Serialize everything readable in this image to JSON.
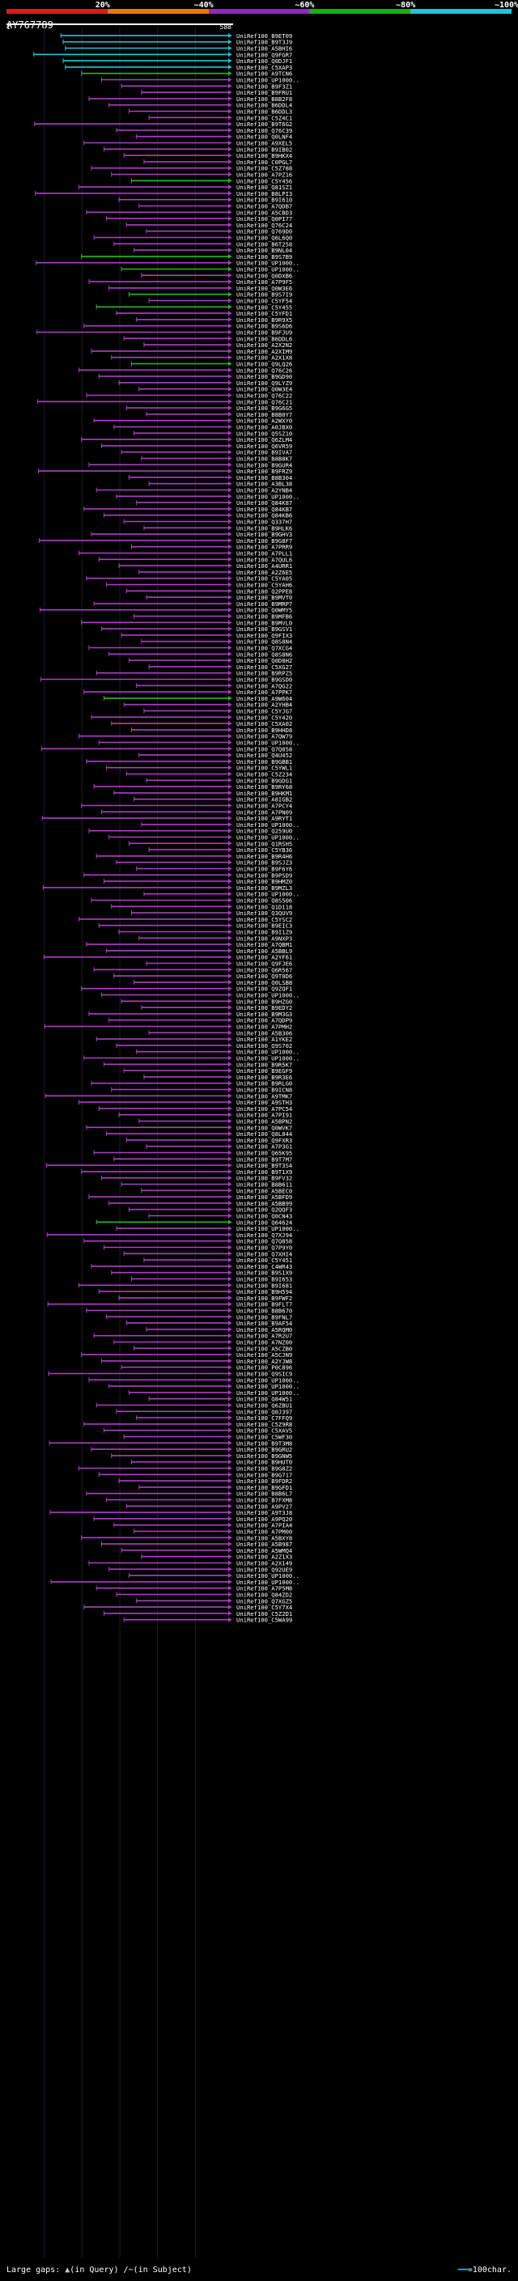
{
  "legend": {
    "ticks": [
      "20%",
      "~40%",
      "~60%",
      "~80%",
      "~100%"
    ],
    "colors": [
      "#e01818",
      "#e07818",
      "#8a2cb8",
      "#18b018",
      "#18c8d8"
    ]
  },
  "accession": "AY767789",
  "chart_data": {
    "type": "alignment-overview",
    "title": "AY767789",
    "query_length": 588,
    "axis_start_label": "1",
    "axis_end_label": "588",
    "labels": [
      "UniRef100_B9ET09",
      "UniRef100_B9T3J9",
      "UniRef100_A5BHI6",
      "UniRef100_Q9FGR7",
      "UniRef100_Q0DJF1",
      "UniRef100_C5XAP3",
      "UniRef100_A9TCN6",
      "UniRef100_UP1000..",
      "UniRef100_B9F3Z1",
      "UniRef100_B9FRU1",
      "UniRef100_B8B2F8",
      "UniRef100_B6DDL4",
      "UniRef100_B6DDL3",
      "UniRef100_C5Z4C1",
      "UniRef100_B9T6G2",
      "UniRef100_Q76C39",
      "UniRef100_Q0LNF4",
      "UniRef100_A9XEL5",
      "UniRef100_B9IB02",
      "UniRef100_B9HKX4",
      "UniRef100_C0PGL7",
      "UniRef100_C5Z788",
      "UniRef100_A7PZ16",
      "UniRef100_C5Y456",
      "UniRef100_Q81SZ1",
      "UniRef100_B8LPI3",
      "UniRef100_B9I610",
      "UniRef100_A7QDB7",
      "UniRef100_A5CBD3",
      "UniRef100_Q0PI77",
      "UniRef100_Q76C24",
      "UniRef100_Q769D0",
      "UniRef100_Q6L6Q0",
      "UniRef100_B6T258",
      "UniRef100_B9NL04",
      "UniRef100_B9S7B9",
      "UniRef100_UP1000..",
      "UniRef100_UP1000..",
      "UniRef100_Q0DXB6",
      "UniRef100_A7P9F5",
      "UniRef100_Q0W3E6",
      "UniRef100_B9S7I9",
      "UniRef100_C5YF54",
      "UniRef100_C5Y455",
      "UniRef100_C5YFD1",
      "UniRef100_B9R9X5",
      "UniRef100_B9S6D6",
      "UniRef100_B9FJU9",
      "UniRef100_B6DDL6",
      "UniRef100_A2X2N2",
      "UniRef100_A2XIM9",
      "UniRef100_A2X1X8",
      "UniRef100_Q9LQ26",
      "UniRef100_Q76C26",
      "UniRef100_B9GD90",
      "UniRef100_Q9LYZ9",
      "UniRef100_Q0W3E4",
      "UniRef100_Q76C22",
      "UniRef100_Q76C21",
      "UniRef100_B9G6G5",
      "UniRef100_B8B0Y7",
      "UniRef100_A2WXY0",
      "UniRef100_A0JBX0",
      "UniRef100_Q5SZ10",
      "UniRef100_Q6ZLM4",
      "UniRef100_Q6VR59",
      "UniRef100_B9IVA7",
      "UniRef100_B8B8K7",
      "UniRef100_B9GUR4",
      "UniRef100_B9FRZ9",
      "UniRef100_B8B304",
      "UniRef100_A3BL38",
      "UniRef100_A2YNB4",
      "UniRef100_UP1000..",
      "UniRef100_Q84K87",
      "UniRef100_Q84KB7",
      "UniRef100_Q84KB6",
      "UniRef100_Q337H7",
      "UniRef100_B9HLK6",
      "UniRef100_B9GHV3",
      "UniRef100_B9G8F7",
      "UniRef100_A7PRR9",
      "UniRef100_A7PLL1",
      "UniRef100_A7QUL6",
      "UniRef100_A4URR1",
      "UniRef100_A2Z6E5",
      "UniRef100_C5YA05",
      "UniRef100_C5YAH6",
      "UniRef100_Q2PPE8",
      "UniRef100_B9MVT0",
      "UniRef100_B9MRP7",
      "UniRef100_Q0WMY5",
      "UniRef100_B9MFB6",
      "UniRef100_B9MVL0",
      "UniRef100_B9GSV1",
      "UniRef100_Q9FIX3",
      "UniRef100_Q8S8N4",
      "UniRef100_Q7XCG4",
      "UniRef100_Q8S8N6",
      "UniRef100_Q0D8H2",
      "UniRef100_C5XG27",
      "UniRef100_B9RPZ5",
      "UniRef100_B9GSD0",
      "UniRef100_A7QG22",
      "UniRef100_A7PPK7",
      "UniRef100_A9W604",
      "UniRef100_A2YHB4",
      "UniRef100_C5YJG7",
      "UniRef100_C5Y420",
      "UniRef100_C5XA02",
      "UniRef100_B9HHD8",
      "UniRef100_A7QW79",
      "UniRef100_UP1000..",
      "UniRef100_Q7Q858",
      "UniRef100_Q4U452",
      "UniRef100_B9GBB1",
      "UniRef100_C5YWL1",
      "UniRef100_C5Z234",
      "UniRef100_B9GDG1",
      "UniRef100_B9RY68",
      "UniRef100_B9HKM1",
      "UniRef100_A8IGB2",
      "UniRef100_A7PCY4",
      "UniRef100_A7PN09",
      "UniRef100_A9RYT1",
      "UniRef100_UP1000..",
      "UniRef100_Q259U0",
      "UniRef100_UP1000..",
      "UniRef100_Q1RSH5",
      "UniRef100_C5YB36",
      "UniRef100_B9R4H6",
      "UniRef100_B9SJZ3",
      "UniRef100_B9F6Y6",
      "UniRef100_B9PSD9",
      "UniRef100_B9HMZ0",
      "UniRef100_B9MZL3",
      "UniRef100_UP1000..",
      "UniRef100_Q8S506",
      "UniRef100_Q1D118",
      "UniRef100_Q3QUV9",
      "UniRef100_C5YSC2",
      "UniRef100_B9EIC3",
      "UniRef100_B9I1Z9",
      "UniRef100_A9NXP3",
      "UniRef100_A7QBM1",
      "UniRef100_A5BBL9",
      "UniRef100_A2YF61",
      "UniRef100_Q9FJE6",
      "UniRef100_Q6R567",
      "UniRef100_Q9T0D6",
      "UniRef100_Q0LSB8",
      "UniRef100_Q9ZQF1",
      "UniRef100_UP1000..",
      "UniRef100_B9HZG0",
      "UniRef100_B9EDY2",
      "UniRef100_B9M3G3",
      "UniRef100_A7QDP9",
      "UniRef100_A7PMH2",
      "UniRef100_A5B306",
      "UniRef100_A1YKE2",
      "UniRef100_Q9S702",
      "UniRef100_UP1000..",
      "UniRef100_UP1000..",
      "UniRef100_B9R5K7",
      "UniRef100_B9EGF9",
      "UniRef100_B9R3E6",
      "UniRef100_B9RLG0",
      "UniRef100_B9ICN8",
      "UniRef100_A9TMK7",
      "UniRef100_A9STH3",
      "UniRef100_A7PC54",
      "UniRef100_A7PI91",
      "UniRef100_A5BPN2",
      "UniRef100_Q0WVK7",
      "UniRef100_Q8L844",
      "UniRef100_Q9FXR3",
      "UniRef100_A7P3G1",
      "UniRef100_Q65K95",
      "UniRef100_B9T7M7",
      "UniRef100_B9T3S4",
      "UniRef100_B9T1X9",
      "UniRef100_B9FV32",
      "UniRef100_B8B611",
      "UniRef100_A5BEC0",
      "UniRef100_A5BFD9",
      "UniRef100_A5BB99",
      "UniRef100_Q2QQF3",
      "UniRef100_Q0CN43",
      "UniRef100_Q64624",
      "UniRef100_UP1000..",
      "UniRef100_Q7XJ94",
      "UniRef100_Q7Q858",
      "UniRef100_Q7P9Y0",
      "UniRef100_Q7XHI4",
      "UniRef100_C5Y451",
      "UniRef100_C4WR43",
      "UniRef100_B9S1X9",
      "UniRef100_B9I653",
      "UniRef100_B9I681",
      "UniRef100_B9H594",
      "UniRef100_B9FWF2",
      "UniRef100_B9FLT7",
      "UniRef100_B8B670",
      "UniRef100_B9FNL7",
      "UniRef100_B9AF54",
      "UniRef100_A5RQM0",
      "UniRef100_A7R2U7",
      "UniRef100_A7NZ00",
      "UniRef100_A5CZB0",
      "UniRef100_A5CJN9",
      "UniRef100_A2YJW8",
      "UniRef100_P0C896",
      "UniRef100_Q9SIC9",
      "UniRef100_UP1000..",
      "UniRef100_UP1000..",
      "UniRef100_UP1000..",
      "UniRef100_Q84W51",
      "UniRef100_Q6ZBU1",
      "UniRef100_Q0J397",
      "UniRef100_C7FFQ9",
      "UniRef100_C5Z9R8",
      "UniRef100_C5XAV5",
      "UniRef100_C5WF30",
      "UniRef100_B9T3M8",
      "UniRef100_B9GRU2",
      "UniRef100_B9GNW5",
      "UniRef100_B9HUT0",
      "UniRef100_B9G8Z2",
      "UniRef100_B9G717",
      "UniRef100_B9FDR2",
      "UniRef100_B9GFD1",
      "UniRef100_B8B6L7",
      "UniRef100_B7FXM8",
      "UniRef100_A9PV27",
      "UniRef100_A9T3J8",
      "UniRef100_A9PQ20",
      "UniRef100_A7PIA4",
      "UniRef100_A7PM00",
      "UniRef100_A5BXY8",
      "UniRef100_A5B987",
      "UniRef100_A5WMQ4",
      "UniRef100_A2Z1X3",
      "UniRef100_A2X149",
      "UniRef100_Q92UE9",
      "UniRef100_UP1000..",
      "UniRef100_UP1000..",
      "UniRef100_A7P5M8",
      "UniRef100_Q84ZD2",
      "UniRef100_Q7XGZ5",
      "UniRef100_C5Y7X4",
      "UniRef100_C5Z2D1",
      "UniRef100_C5WA99"
    ]
  },
  "footer": {
    "large_gaps_label": "Large gaps:",
    "in_query_label": "(in Query)",
    "in_subject_label": "(in Subject)",
    "scale_label": "=100char."
  }
}
